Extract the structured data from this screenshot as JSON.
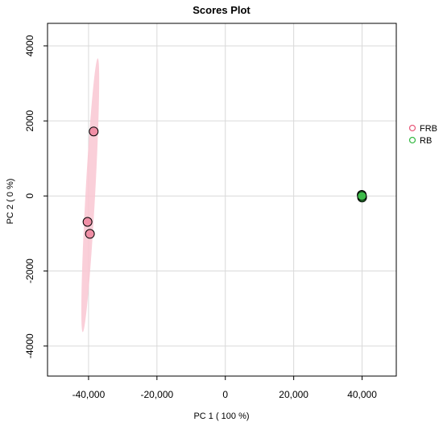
{
  "chart_data": {
    "type": "scatter",
    "title": "Scores Plot",
    "xlabel": "PC 1 ( 100 %)",
    "ylabel": "PC 2 ( 0 %)",
    "xlim": [
      -52000,
      50000
    ],
    "ylim": [
      -4800,
      4600
    ],
    "x_ticks": [
      -40000,
      -20000,
      0,
      20000,
      40000
    ],
    "x_tick_labels": [
      "-40,000",
      "-20,000",
      "0",
      "20,000",
      "40,000"
    ],
    "y_ticks": [
      -4000,
      -2000,
      0,
      2000,
      4000
    ],
    "y_tick_labels": [
      "-4000",
      "-2000",
      "0",
      "2000",
      "4000"
    ],
    "grid": true,
    "legend_position": "right",
    "series": [
      {
        "name": "FRB",
        "color": "#e8607f",
        "fill": "#f08fa6",
        "ellipse_fill": "#f9c7d2",
        "points": [
          {
            "x": -38500,
            "y": 1720
          },
          {
            "x": -40300,
            "y": -690
          },
          {
            "x": -39600,
            "y": -1010
          }
        ],
        "ellipse": {
          "cx": -39500,
          "cy": 20,
          "x_extent": 2200,
          "y_extent": 3650
        }
      },
      {
        "name": "RB",
        "color": "#3dbb4a",
        "fill": "#3dbb4a",
        "points": [
          {
            "x": 39900,
            "y": 30
          },
          {
            "x": 40000,
            "y": -40
          },
          {
            "x": 39950,
            "y": 0
          }
        ]
      }
    ]
  }
}
